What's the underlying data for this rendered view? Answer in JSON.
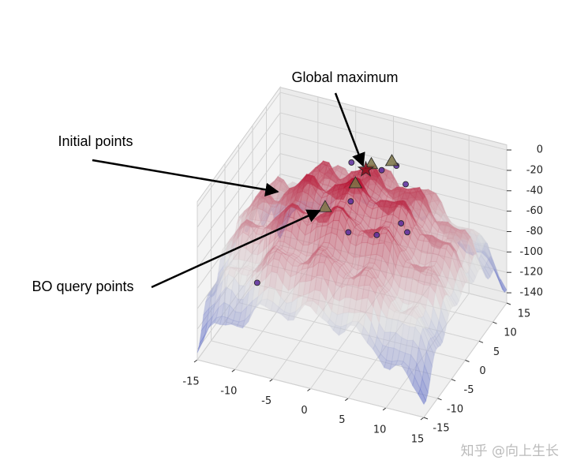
{
  "chart_data": {
    "type": "surface3d",
    "annotations": [
      "Global maximum",
      "Initial points",
      "BO query points"
    ],
    "xlim": [
      -15,
      15
    ],
    "ylim": [
      -15,
      15
    ],
    "zlim": [
      -150,
      5
    ],
    "xticks": [
      -15,
      -10,
      -5,
      0,
      5,
      10,
      15
    ],
    "yticks": [
      -15,
      -10,
      -5,
      0,
      5,
      10,
      15
    ],
    "zticks": [
      0,
      -20,
      -40,
      -60,
      -80,
      -100,
      -120,
      -140
    ],
    "series": [
      {
        "marker": "circle",
        "color": "#5a2d9c",
        "x": [
          -3,
          1,
          4,
          -2,
          -1,
          2.4,
          6,
          -10,
          2.3,
          5
        ],
        "y": [
          8,
          8,
          8.5,
          5,
          1.4,
          2.4,
          3.6,
          -7,
          9.8,
          4.1
        ],
        "z": [
          -20,
          -20,
          -30,
          -45,
          -60,
          -60,
          -55,
          -95,
          -20,
          -50
        ]
      },
      {
        "marker": "triangle",
        "color": "#7d7446",
        "x": [
          0,
          -1.3,
          -4,
          1.8
        ],
        "y": [
          7,
          4.8,
          1.2,
          9.5
        ],
        "z": [
          -12,
          -25,
          -40,
          -15
        ]
      },
      {
        "marker": "star",
        "color": "#8b0a1a",
        "x": [
          0
        ],
        "y": [
          5
        ],
        "z": [
          -10
        ]
      }
    ],
    "watermark": "知乎 @向上生长"
  }
}
